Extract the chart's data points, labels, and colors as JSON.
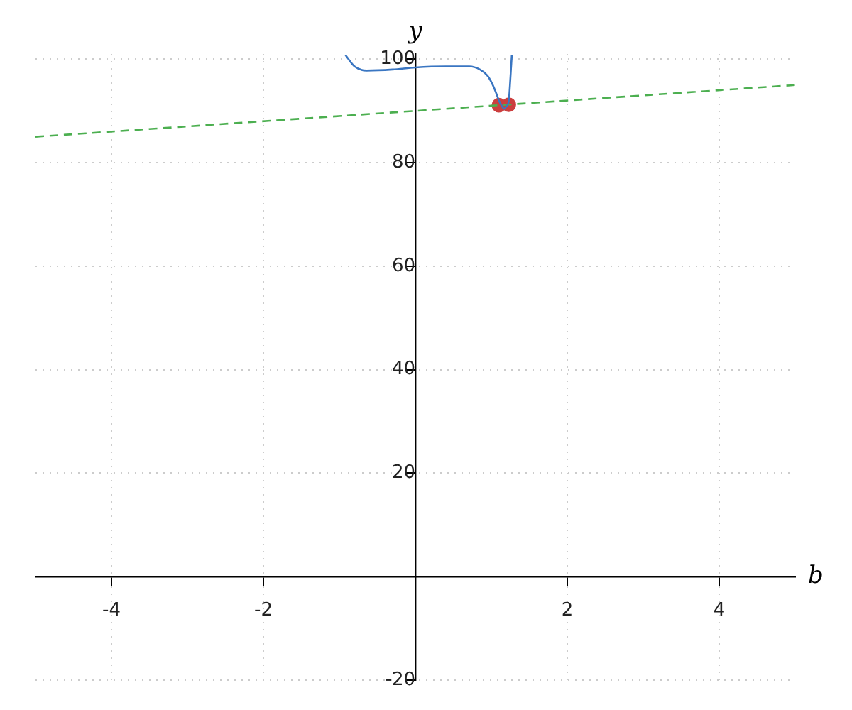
{
  "chart_data": {
    "type": "line",
    "xlabel": "b",
    "ylabel": "y",
    "xlim": [
      -5,
      5
    ],
    "ylim": [
      -20,
      101
    ],
    "xticks": [
      -4,
      -2,
      2,
      4
    ],
    "yticks": [
      -20,
      20,
      40,
      60,
      80,
      100
    ],
    "grid": true,
    "legend": false,
    "series": [
      {
        "color": "#3a76c2",
        "marker": "none",
        "line_style": "solid",
        "x": [
          -0.92,
          -0.8,
          -0.64,
          -0.3,
          0,
          0.4,
          0.71,
          0.85,
          0.95,
          1.01,
          1.06,
          1.1,
          1.14,
          1.17,
          1.2,
          1.23,
          1.25,
          1.27
        ],
        "values": [
          100.8,
          98.6,
          97.8,
          98,
          98.4,
          98.6,
          98.6,
          98,
          96.8,
          95.3,
          93.6,
          92,
          90.9,
          90.4,
          90.9,
          92,
          96,
          100.8
        ]
      },
      {
        "color": "#4caf50",
        "marker": "none",
        "line_style": "dashed",
        "x": [
          -5,
          5
        ],
        "values": [
          85,
          95
        ]
      },
      {
        "type": "scatter",
        "color": "#cc3f3f",
        "marker": "circle",
        "x": [
          1.1,
          1.23
        ],
        "values": [
          91.1,
          91.2
        ]
      }
    ]
  }
}
